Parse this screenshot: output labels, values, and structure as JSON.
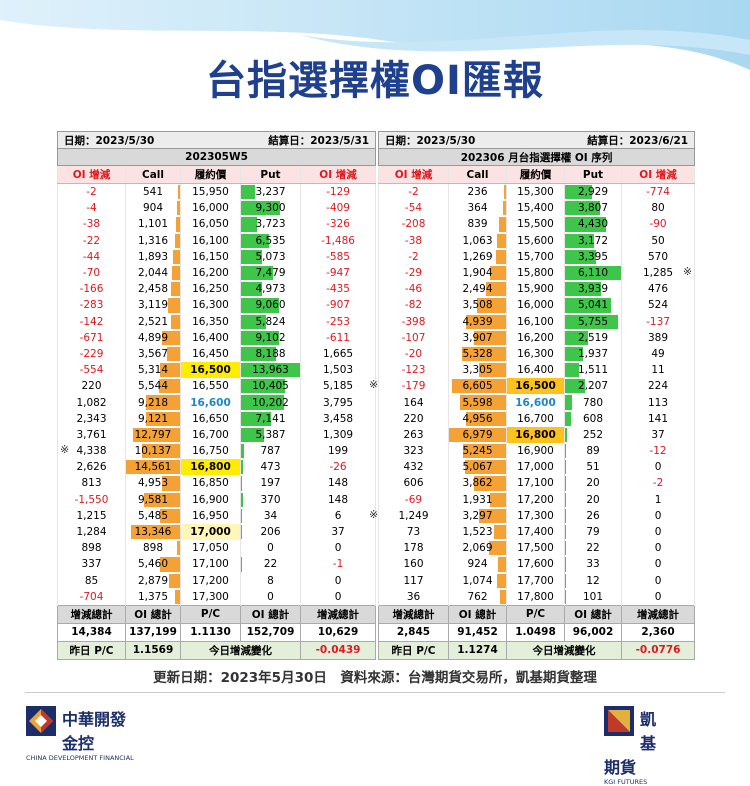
{
  "title": "台指選擇權OI匯報",
  "tables": [
    {
      "date": "日期：2023/5/30",
      "settlement": "結算日：2023/5/31",
      "name": "202305W5",
      "columns": [
        "OI 增減",
        "Call",
        "履約價",
        "Put",
        "OI 增減"
      ],
      "rows": [
        {
          "cells": [
            "-2",
            "541",
            "15,950",
            "3,237",
            "-129"
          ]
        },
        {
          "cells": [
            "-4",
            "904",
            "16,000",
            "9,300",
            "-409"
          ]
        },
        {
          "cells": [
            "-38",
            "1,101",
            "16,050",
            "3,723",
            "-326"
          ]
        },
        {
          "cells": [
            "-22",
            "1,316",
            "16,100",
            "6,535",
            "-1,486"
          ]
        },
        {
          "cells": [
            "-44",
            "1,893",
            "16,150",
            "5,073",
            "-585"
          ]
        },
        {
          "cells": [
            "-70",
            "2,044",
            "16,200",
            "7,479",
            "-947"
          ]
        },
        {
          "cells": [
            "-166",
            "2,458",
            "16,250",
            "4,973",
            "-435"
          ]
        },
        {
          "cells": [
            "-283",
            "3,119",
            "16,300",
            "9,060",
            "-907"
          ]
        },
        {
          "cells": [
            "-142",
            "2,521",
            "16,350",
            "5,824",
            "-253"
          ]
        },
        {
          "cells": [
            "-671",
            "4,899",
            "16,400",
            "9,102",
            "-611"
          ]
        },
        {
          "cells": [
            "-229",
            "3,567",
            "16,450",
            "8,188",
            "1,665"
          ]
        },
        {
          "cells": [
            "-554",
            "5,314",
            "16,500",
            "13,963",
            "1,503"
          ]
        },
        {
          "cells": [
            "220",
            "5,544",
            "16,550",
            "10,405",
            "5,185"
          ]
        },
        {
          "cells": [
            "1,082",
            "9,218",
            "16,600",
            "10,202",
            "3,795"
          ]
        },
        {
          "cells": [
            "2,343",
            "9,121",
            "16,650",
            "7,141",
            "3,458"
          ]
        },
        {
          "cells": [
            "3,761",
            "12,797",
            "16,700",
            "5,387",
            "1,309"
          ]
        },
        {
          "cells": [
            "4,338",
            "10,137",
            "16,750",
            "787",
            "199"
          ],
          "note_before": "※"
        },
        {
          "cells": [
            "2,626",
            "14,561",
            "16,800",
            "473",
            "-26"
          ]
        },
        {
          "cells": [
            "813",
            "4,953",
            "16,850",
            "197",
            "148"
          ]
        },
        {
          "cells": [
            "-1,550",
            "9,581",
            "16,900",
            "370",
            "148"
          ]
        },
        {
          "cells": [
            "1,215",
            "5,485",
            "16,950",
            "34",
            "6"
          ]
        },
        {
          "cells": [
            "1,284",
            "13,346",
            "17,000",
            "206",
            "37"
          ]
        },
        {
          "cells": [
            "898",
            "898",
            "17,050",
            "0",
            "0"
          ]
        },
        {
          "cells": [
            "337",
            "5,460",
            "17,100",
            "22",
            "-1"
          ]
        },
        {
          "cells": [
            "85",
            "2,879",
            "17,200",
            "8",
            "0"
          ]
        },
        {
          "cells": [
            "-704",
            "1,375",
            "17,300",
            "0",
            "0"
          ]
        }
      ],
      "summary_headers": [
        "增減總計",
        "OI 總計",
        "P/C",
        "OI 總計",
        "增減總計"
      ],
      "summary_values": [
        "14,384",
        "137,199",
        "1.1130",
        "152,709",
        "10,629"
      ],
      "prev_pc_label": "昨日 P/C",
      "prev_pc": "1.1569",
      "change_label": "今日增減變化",
      "change": "-0.0439"
    },
    {
      "date": "日期：2023/5/30",
      "settlement": "結算日：2023/6/21",
      "name": "202306 月台指選擇權 OI 序列",
      "columns": [
        "OI 增減",
        "Call",
        "履約價",
        "Put",
        "OI 增減"
      ],
      "rows": [
        {
          "cells": [
            "-2",
            "236",
            "15,300",
            "2,929",
            "-774"
          ]
        },
        {
          "cells": [
            "-54",
            "364",
            "15,400",
            "3,807",
            "80"
          ]
        },
        {
          "cells": [
            "-208",
            "839",
            "15,500",
            "4,430",
            "-90"
          ]
        },
        {
          "cells": [
            "-38",
            "1,063",
            "15,600",
            "3,172",
            "50"
          ]
        },
        {
          "cells": [
            "-2",
            "1,269",
            "15,700",
            "3,395",
            "570"
          ]
        },
        {
          "cells": [
            "-29",
            "1,904",
            "15,800",
            "6,110",
            "1,285"
          ],
          "note_after": "※"
        },
        {
          "cells": [
            "-46",
            "2,494",
            "15,900",
            "3,939",
            "476"
          ]
        },
        {
          "cells": [
            "-82",
            "3,508",
            "16,000",
            "5,041",
            "524"
          ]
        },
        {
          "cells": [
            "-398",
            "4,939",
            "16,100",
            "5,755",
            "-137"
          ]
        },
        {
          "cells": [
            "-107",
            "3,907",
            "16,200",
            "2,519",
            "389"
          ]
        },
        {
          "cells": [
            "-20",
            "5,328",
            "16,300",
            "1,937",
            "49"
          ]
        },
        {
          "cells": [
            "-123",
            "3,305",
            "16,400",
            "1,511",
            "11"
          ]
        },
        {
          "cells": [
            "-179",
            "6,605",
            "16,500",
            "2,207",
            "224"
          ],
          "note_before": "※"
        },
        {
          "cells": [
            "164",
            "5,598",
            "16,600",
            "780",
            "113"
          ]
        },
        {
          "cells": [
            "220",
            "4,956",
            "16,700",
            "608",
            "141"
          ]
        },
        {
          "cells": [
            "263",
            "6,979",
            "16,800",
            "252",
            "37"
          ]
        },
        {
          "cells": [
            "323",
            "5,245",
            "16,900",
            "89",
            "-12"
          ]
        },
        {
          "cells": [
            "432",
            "5,067",
            "17,000",
            "51",
            "0"
          ]
        },
        {
          "cells": [
            "606",
            "3,862",
            "17,100",
            "20",
            "-2"
          ]
        },
        {
          "cells": [
            "-69",
            "1,931",
            "17,200",
            "20",
            "1"
          ]
        },
        {
          "cells": [
            "1,249",
            "3,297",
            "17,300",
            "26",
            "0"
          ],
          "note_before": "※"
        },
        {
          "cells": [
            "73",
            "1,523",
            "17,400",
            "79",
            "0"
          ]
        },
        {
          "cells": [
            "178",
            "2,069",
            "17,500",
            "22",
            "0"
          ]
        },
        {
          "cells": [
            "160",
            "924",
            "17,600",
            "33",
            "0"
          ]
        },
        {
          "cells": [
            "117",
            "1,074",
            "17,700",
            "12",
            "0"
          ]
        },
        {
          "cells": [
            "36",
            "762",
            "17,800",
            "101",
            "0"
          ]
        }
      ],
      "summary_headers": [
        "增減總計",
        "OI 總計",
        "P/C",
        "OI 總計",
        "增減總計"
      ],
      "summary_values": [
        "2,845",
        "91,452",
        "1.0498",
        "96,002",
        "2,360"
      ],
      "prev_pc_label": "昨日 P/C",
      "prev_pc": "1.1274",
      "change_label": "今日增減變化",
      "change": "-0.0776"
    }
  ],
  "footer": "更新日期：2023年5月30日　資料來源：台灣期貨交易所，凱基期貨整理",
  "logo_left": {
    "name": "中華開發金控",
    "english": "CHINA DEVELOPMENT FINANCIAL"
  },
  "logo_right": {
    "name": "凱基期貨",
    "english": "KGI FUTURES"
  }
}
